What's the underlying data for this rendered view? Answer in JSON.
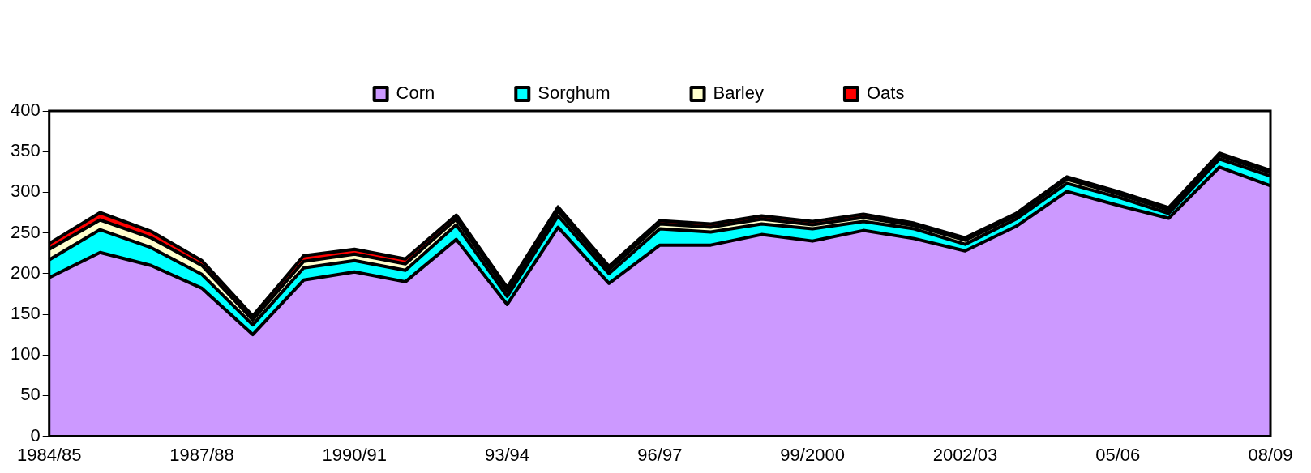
{
  "chart_data": {
    "type": "area",
    "stacked": true,
    "categories": [
      "1984/85",
      null,
      null,
      "1987/88",
      null,
      null,
      "1990/91",
      null,
      null,
      "93/94",
      null,
      null,
      "96/97",
      null,
      null,
      "99/2000",
      null,
      null,
      "2002/03",
      null,
      null,
      "05/06",
      null,
      null,
      "08/09"
    ],
    "series": [
      {
        "name": "Corn",
        "color": "#cc99ff",
        "values": [
          195,
          226,
          210,
          182,
          125,
          192,
          202,
          190,
          242,
          162,
          257,
          188,
          235,
          235,
          248,
          240,
          253,
          243,
          228,
          258,
          301,
          284,
          268,
          331,
          308
        ]
      },
      {
        "name": "Sorghum",
        "color": "#00ffff",
        "values": [
          22,
          28,
          22,
          17,
          12,
          15,
          14,
          14,
          18,
          10,
          14,
          12,
          20,
          16,
          13,
          15,
          11,
          12,
          8,
          9,
          10,
          10,
          6,
          10,
          12
        ]
      },
      {
        "name": "Barley",
        "color": "#ffffcc",
        "values": [
          13,
          12,
          12,
          11,
          6,
          8,
          8,
          8,
          7,
          6,
          6,
          5,
          6,
          6,
          6,
          5,
          5,
          4,
          5,
          4,
          5,
          4,
          4,
          4,
          4
        ]
      },
      {
        "name": "Oats",
        "color": "#ff0000",
        "values": [
          7,
          9,
          8,
          6,
          5,
          7,
          6,
          6,
          5,
          5,
          5,
          4,
          4,
          4,
          4,
          4,
          4,
          3,
          3,
          3,
          3,
          3,
          3,
          3,
          3
        ]
      }
    ],
    "ylim": [
      0,
      400
    ],
    "yticks": [
      0,
      50,
      100,
      150,
      200,
      250,
      300,
      350,
      400
    ],
    "grid": false,
    "legend": "top"
  }
}
